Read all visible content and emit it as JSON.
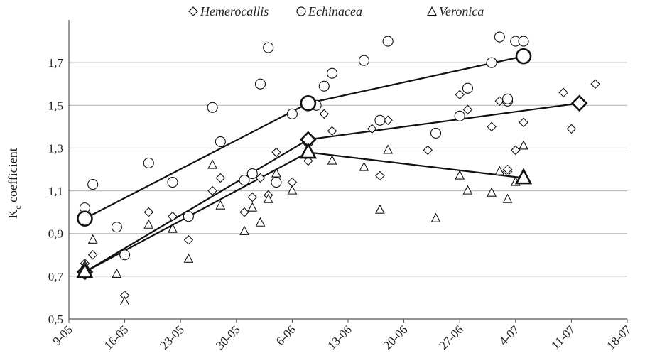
{
  "chart_data": {
    "type": "scatter",
    "title": "",
    "xlabel": "",
    "ylabel": "Kc coefficient",
    "ylabel_main": "K",
    "ylabel_sub": "c",
    "ylabel_rest": " coefficient",
    "ylim": [
      0.5,
      1.9
    ],
    "xlim": [
      "2011-05-09",
      "2011-07-18"
    ],
    "x_tick_labels": [
      "9-05",
      "16-05",
      "23-05",
      "30-05",
      "6-06",
      "13-06",
      "20-06",
      "27-06",
      "4-07",
      "11-07",
      "18-07"
    ],
    "y_tick_labels": [
      "0,5",
      "0,7",
      "0,9",
      "1,1",
      "1,3",
      "1,5",
      "1,7"
    ],
    "y_ticks": [
      0.5,
      0.7,
      0.9,
      1.1,
      1.3,
      1.5,
      1.7
    ],
    "grid": "horizontal",
    "legend_position": "top",
    "series": [
      {
        "name": "Hemerocallis",
        "marker": "diamond",
        "points": [
          [
            "2011-05-11",
            0.76
          ],
          [
            "2011-05-12",
            0.8
          ],
          [
            "2011-05-16",
            0.61
          ],
          [
            "2011-05-19",
            1.0
          ],
          [
            "2011-05-22",
            0.98
          ],
          [
            "2011-05-24",
            0.87
          ],
          [
            "2011-05-27",
            1.1
          ],
          [
            "2011-05-28",
            1.16
          ],
          [
            "2011-05-31",
            1.0
          ],
          [
            "2011-06-01",
            1.07
          ],
          [
            "2011-06-02",
            1.16
          ],
          [
            "2011-06-03",
            1.08
          ],
          [
            "2011-06-04",
            1.28
          ],
          [
            "2011-06-06",
            1.14
          ],
          [
            "2011-06-08",
            1.24
          ],
          [
            "2011-06-10",
            1.46
          ],
          [
            "2011-06-11",
            1.38
          ],
          [
            "2011-06-16",
            1.39
          ],
          [
            "2011-06-17",
            1.17
          ],
          [
            "2011-06-18",
            1.43
          ],
          [
            "2011-06-23",
            1.29
          ],
          [
            "2011-06-27",
            1.55
          ],
          [
            "2011-06-28",
            1.48
          ],
          [
            "2011-07-01",
            1.4
          ],
          [
            "2011-07-02",
            1.52
          ],
          [
            "2011-07-03",
            1.19
          ],
          [
            "2011-07-03",
            1.2
          ],
          [
            "2011-07-04",
            1.29
          ],
          [
            "2011-07-05",
            1.42
          ],
          [
            "2011-07-10",
            1.56
          ],
          [
            "2011-07-11",
            1.39
          ],
          [
            "2011-07-14",
            1.6
          ]
        ],
        "trend": [
          [
            "2011-05-11",
            0.72
          ],
          [
            "2011-06-08",
            1.34
          ],
          [
            "2011-07-12",
            1.51
          ]
        ]
      },
      {
        "name": "Echinacea",
        "marker": "circle",
        "points": [
          [
            "2011-05-11",
            1.02
          ],
          [
            "2011-05-12",
            1.13
          ],
          [
            "2011-05-15",
            0.93
          ],
          [
            "2011-05-16",
            0.8
          ],
          [
            "2011-05-19",
            1.23
          ],
          [
            "2011-05-22",
            1.14
          ],
          [
            "2011-05-24",
            0.98
          ],
          [
            "2011-05-27",
            1.49
          ],
          [
            "2011-05-28",
            1.33
          ],
          [
            "2011-05-31",
            1.15
          ],
          [
            "2011-06-01",
            1.18
          ],
          [
            "2011-06-02",
            1.6
          ],
          [
            "2011-06-03",
            1.77
          ],
          [
            "2011-06-04",
            1.14
          ],
          [
            "2011-06-06",
            1.46
          ],
          [
            "2011-06-08",
            1.33
          ],
          [
            "2011-06-09",
            1.5
          ],
          [
            "2011-06-10",
            1.59
          ],
          [
            "2011-06-11",
            1.65
          ],
          [
            "2011-06-15",
            1.71
          ],
          [
            "2011-06-17",
            1.43
          ],
          [
            "2011-06-18",
            1.8
          ],
          [
            "2011-06-24",
            1.37
          ],
          [
            "2011-06-27",
            1.45
          ],
          [
            "2011-06-28",
            1.58
          ],
          [
            "2011-07-01",
            1.7
          ],
          [
            "2011-07-02",
            1.82
          ],
          [
            "2011-07-03",
            1.52
          ],
          [
            "2011-07-03",
            1.53
          ],
          [
            "2011-07-04",
            1.8
          ],
          [
            "2011-07-05",
            1.8
          ]
        ],
        "trend": [
          [
            "2011-05-11",
            0.97
          ],
          [
            "2011-06-08",
            1.51
          ],
          [
            "2011-07-05",
            1.73
          ]
        ]
      },
      {
        "name": "Veronica",
        "marker": "triangle",
        "points": [
          [
            "2011-05-11",
            0.75
          ],
          [
            "2011-05-12",
            0.87
          ],
          [
            "2011-05-15",
            0.71
          ],
          [
            "2011-05-16",
            0.58
          ],
          [
            "2011-05-19",
            0.94
          ],
          [
            "2011-05-22",
            0.92
          ],
          [
            "2011-05-24",
            0.78
          ],
          [
            "2011-05-27",
            1.22
          ],
          [
            "2011-05-28",
            1.03
          ],
          [
            "2011-05-31",
            0.91
          ],
          [
            "2011-06-01",
            1.02
          ],
          [
            "2011-06-02",
            0.95
          ],
          [
            "2011-06-03",
            1.06
          ],
          [
            "2011-06-04",
            1.18
          ],
          [
            "2011-06-06",
            1.1
          ],
          [
            "2011-06-08",
            1.27
          ],
          [
            "2011-06-11",
            1.24
          ],
          [
            "2011-06-15",
            1.21
          ],
          [
            "2011-06-17",
            1.01
          ],
          [
            "2011-06-18",
            1.29
          ],
          [
            "2011-06-24",
            0.97
          ],
          [
            "2011-06-27",
            1.17
          ],
          [
            "2011-06-28",
            1.1
          ],
          [
            "2011-07-01",
            1.09
          ],
          [
            "2011-07-02",
            1.19
          ],
          [
            "2011-07-03",
            1.06
          ],
          [
            "2011-07-04",
            1.14
          ],
          [
            "2011-07-05",
            1.31
          ]
        ],
        "trend": [
          [
            "2011-05-11",
            0.72
          ],
          [
            "2011-06-08",
            1.28
          ],
          [
            "2011-07-05",
            1.16
          ]
        ]
      }
    ]
  }
}
